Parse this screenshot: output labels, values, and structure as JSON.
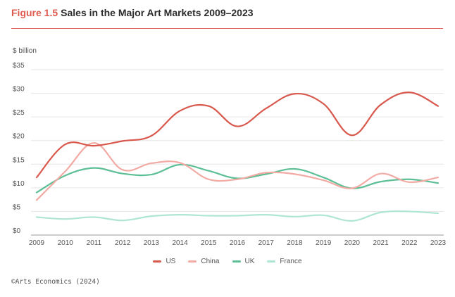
{
  "header": {
    "figure_label": "Figure 1.5",
    "title": "Sales in the Major Art Markets 2009–2023"
  },
  "source": "©Arts Economics (2024)",
  "chart_data": {
    "type": "line",
    "title": "Sales in the Major Art Markets 2009–2023",
    "ylabel": "$ billion",
    "xlabel": "",
    "ylim": [
      0,
      35
    ],
    "yticks": [
      0,
      5,
      10,
      15,
      20,
      25,
      30,
      35
    ],
    "ytick_labels": [
      "$0",
      "$5",
      "$10",
      "$15",
      "$20",
      "$25",
      "$30",
      "$35"
    ],
    "categories": [
      "2009",
      "2010",
      "2011",
      "2012",
      "2013",
      "2014",
      "2015",
      "2016",
      "2017",
      "2018",
      "2019",
      "2020",
      "2021",
      "2022",
      "2023"
    ],
    "grid": true,
    "legend_position": "bottom",
    "series": [
      {
        "name": "US",
        "color": "#d9584d",
        "values": [
          12.2,
          19.2,
          18.9,
          19.9,
          21.0,
          26.3,
          27.3,
          23.0,
          26.8,
          29.9,
          27.8,
          21.1,
          27.6,
          30.2,
          27.3
        ]
      },
      {
        "name": "China",
        "color": "#f2aaa4",
        "values": [
          7.4,
          13.5,
          19.5,
          13.8,
          15.2,
          15.3,
          11.8,
          11.8,
          13.2,
          12.9,
          11.6,
          9.9,
          13.0,
          11.2,
          12.2
        ]
      },
      {
        "name": "UK",
        "color": "#5cbf95",
        "values": [
          9.0,
          12.6,
          14.2,
          13.0,
          12.8,
          14.9,
          13.6,
          12.0,
          12.9,
          14.0,
          12.2,
          9.9,
          11.3,
          11.8,
          11.0
        ]
      },
      {
        "name": "France",
        "color": "#aee5d3",
        "values": [
          3.8,
          3.4,
          3.8,
          3.1,
          4.0,
          4.3,
          4.1,
          4.1,
          4.3,
          3.9,
          4.2,
          3.0,
          4.8,
          5.0,
          4.6
        ]
      }
    ]
  }
}
